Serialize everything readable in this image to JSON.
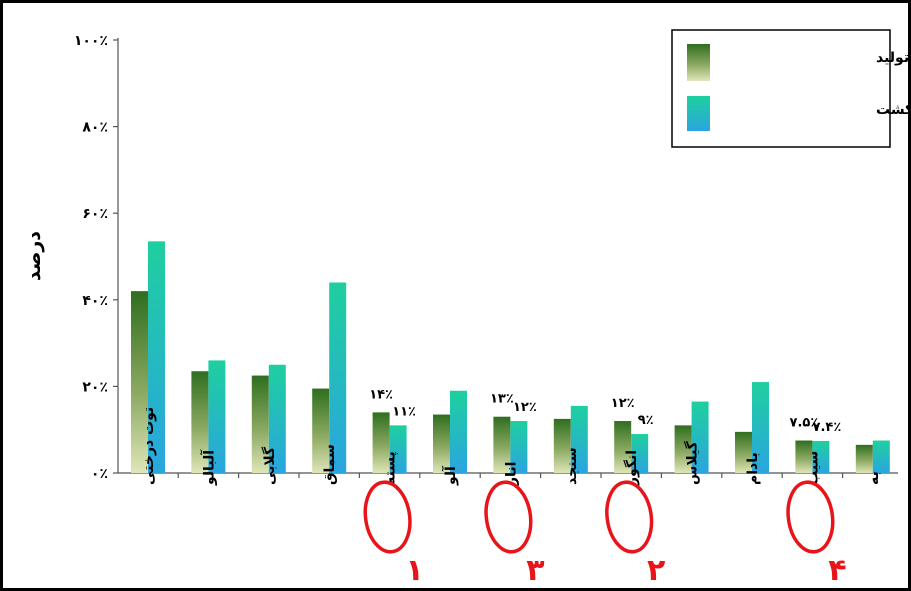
{
  "chart_data": {
    "type": "bar",
    "ylabel": "درصد",
    "ylim": [
      0,
      100
    ],
    "yticks": [
      "۰٪",
      "۲۰٪",
      "۴۰٪",
      "۶۰٪",
      "۸۰٪",
      "۱۰۰٪"
    ],
    "grid": false,
    "legend_position": "top-right",
    "categories": [
      "توت درختی",
      "آلبالو",
      "گلابی",
      "سماق",
      "پسته",
      "آلو",
      "انار",
      "سنجد",
      "انگور",
      "گیلاس",
      "بادام",
      "سیب",
      "به"
    ],
    "series": [
      {
        "name": "سهم از تولید",
        "values": [
          42,
          23.5,
          22.5,
          19.5,
          14,
          13.5,
          13,
          12.5,
          12,
          11,
          9.5,
          7.5,
          6.5
        ]
      },
      {
        "name": "سهم از سطح زیرکشت",
        "values": [
          53.5,
          26,
          25,
          44,
          11,
          19,
          12,
          15.5,
          9,
          16.5,
          21,
          7.4,
          7.5
        ]
      }
    ],
    "annotations": [
      {
        "category": "پسته",
        "labels": [
          "۱۴٪",
          "۱۱٪"
        ],
        "rank": "۱"
      },
      {
        "category": "انار",
        "labels": [
          "۱۳٪",
          "۱۲٪"
        ],
        "rank": "۳"
      },
      {
        "category": "انگور",
        "labels": [
          "۱۲٪",
          "۹٪"
        ],
        "rank": "۲"
      },
      {
        "category": "سیب",
        "labels": [
          "۷.۵٪",
          "۷.۴٪"
        ],
        "rank": "۴"
      }
    ]
  },
  "colors": {
    "production_top": "#2f6e1f",
    "production_bottom": "#dfe6b8",
    "area_top": "#1fcf9e",
    "area_bottom": "#2aa5e0",
    "highlight": "#e8141a"
  }
}
